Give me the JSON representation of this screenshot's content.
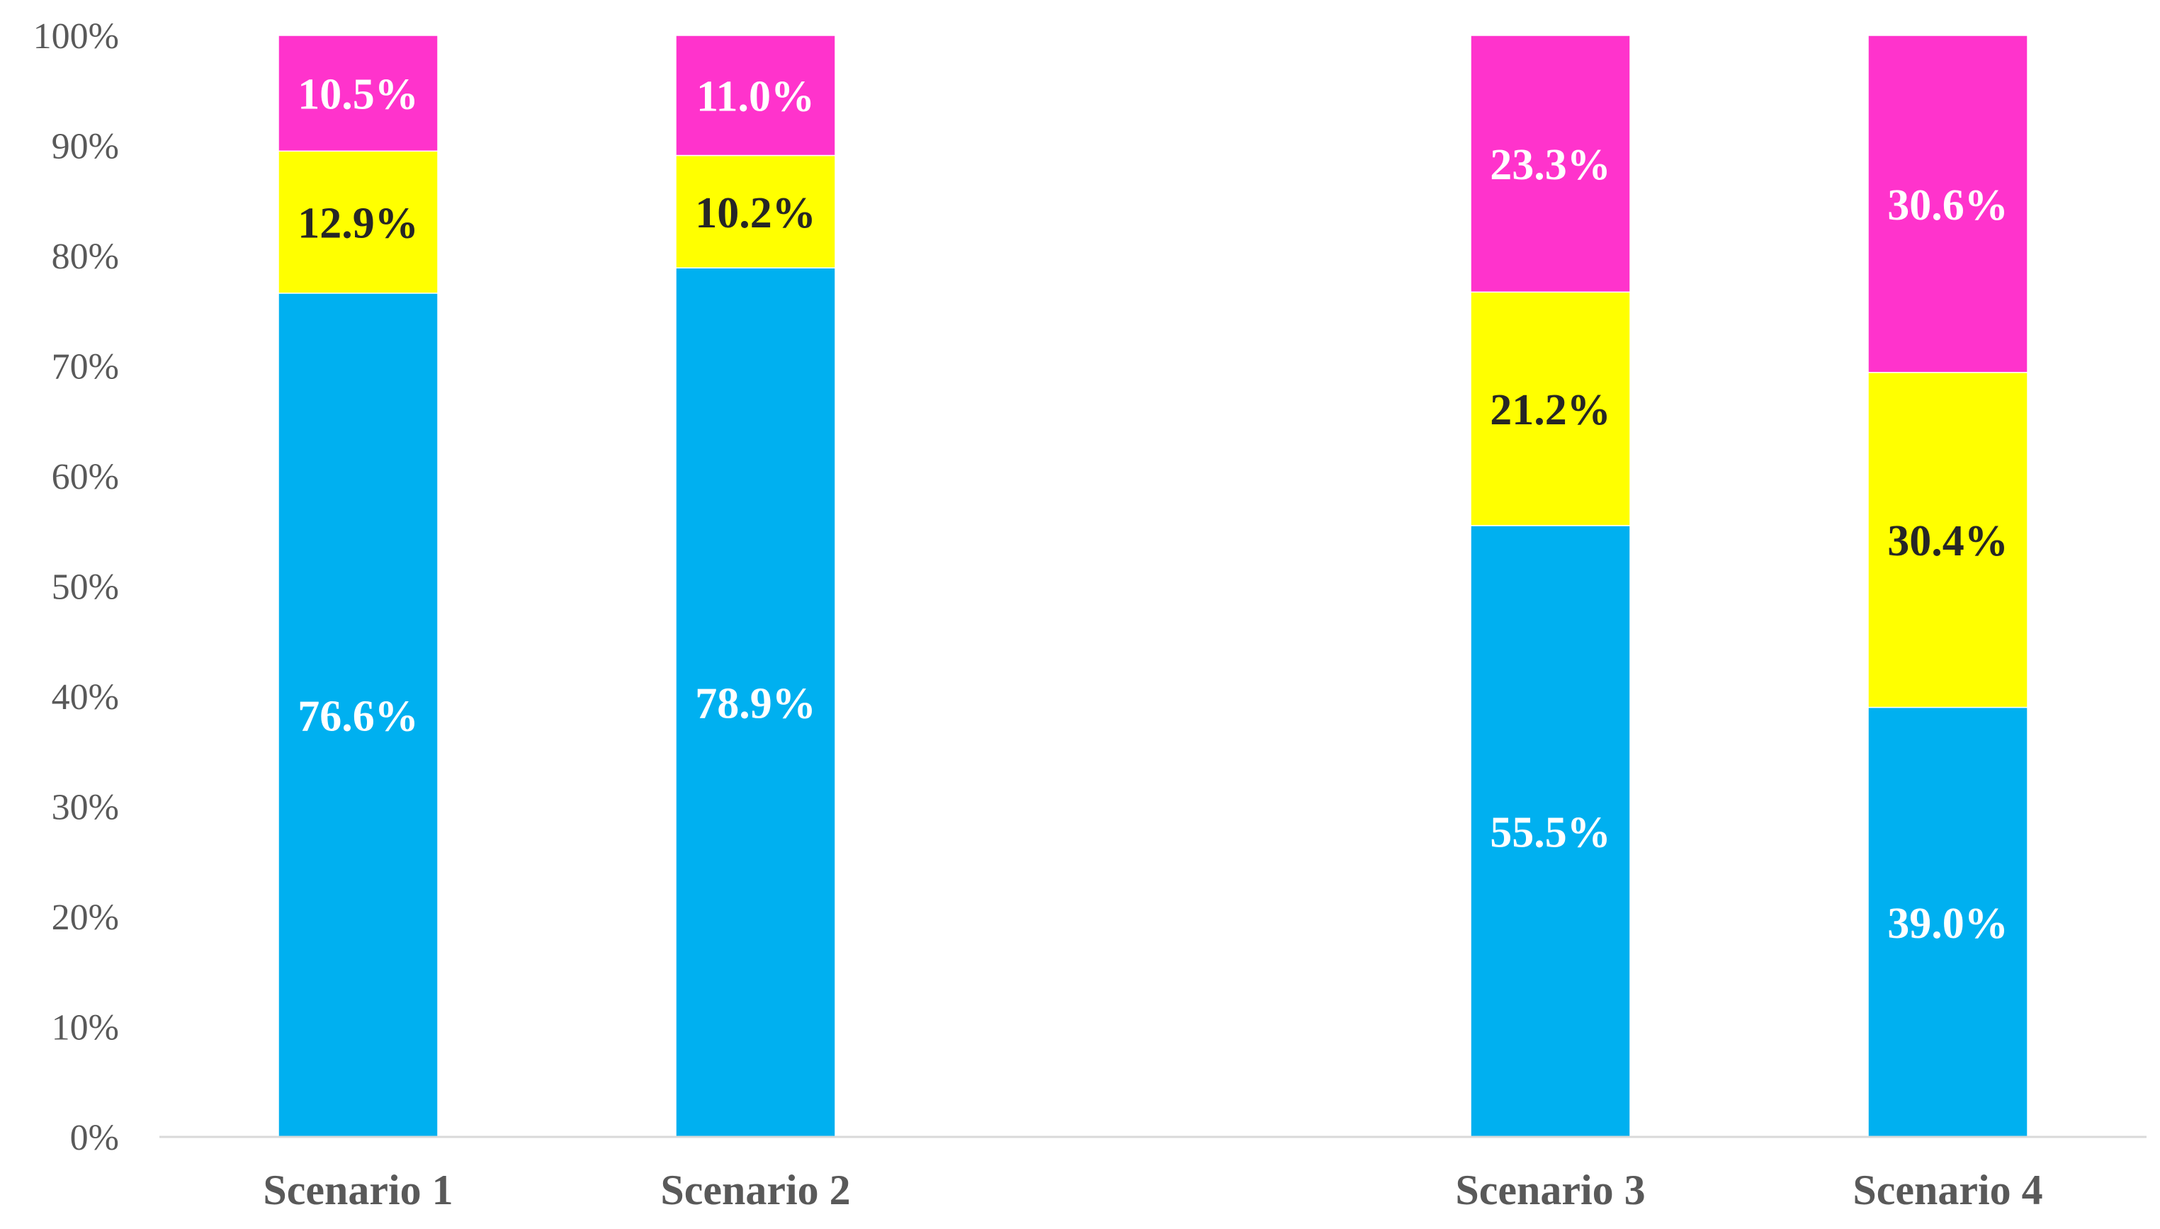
{
  "chart_data": {
    "type": "bar",
    "stacked": true,
    "categories": [
      "Scenario 1",
      "Scenario 2",
      "",
      "Scenario 3",
      "Scenario 4"
    ],
    "ylim": [
      0,
      100
    ],
    "y_ticks": [
      "0%",
      "10%",
      "20%",
      "30%",
      "40%",
      "50%",
      "60%",
      "70%",
      "80%",
      "90%",
      "100%"
    ],
    "grid": false,
    "legend": "none",
    "series": [
      {
        "color": "#00B0F0",
        "label_color": "#ffffff",
        "values": [
          76.6,
          78.9,
          null,
          55.5,
          39.0
        ],
        "labels": [
          "76.6%",
          "78.9%",
          "",
          "55.5%",
          "39.0%"
        ]
      },
      {
        "color": "#FFFF00",
        "label_color": "#262626",
        "values": [
          12.9,
          10.2,
          null,
          21.2,
          30.4
        ],
        "labels": [
          "12.9%",
          "10.2%",
          "",
          "21.2%",
          "30.4%"
        ]
      },
      {
        "color": "#FF33CC",
        "label_color": "#ffffff",
        "values": [
          10.5,
          11.0,
          null,
          23.3,
          30.6
        ],
        "labels": [
          "10.5%",
          "11.0%",
          "",
          "23.3%",
          "30.6%"
        ]
      }
    ],
    "colors": {
      "axis": "#D9D9D9",
      "text": "#595959"
    }
  }
}
